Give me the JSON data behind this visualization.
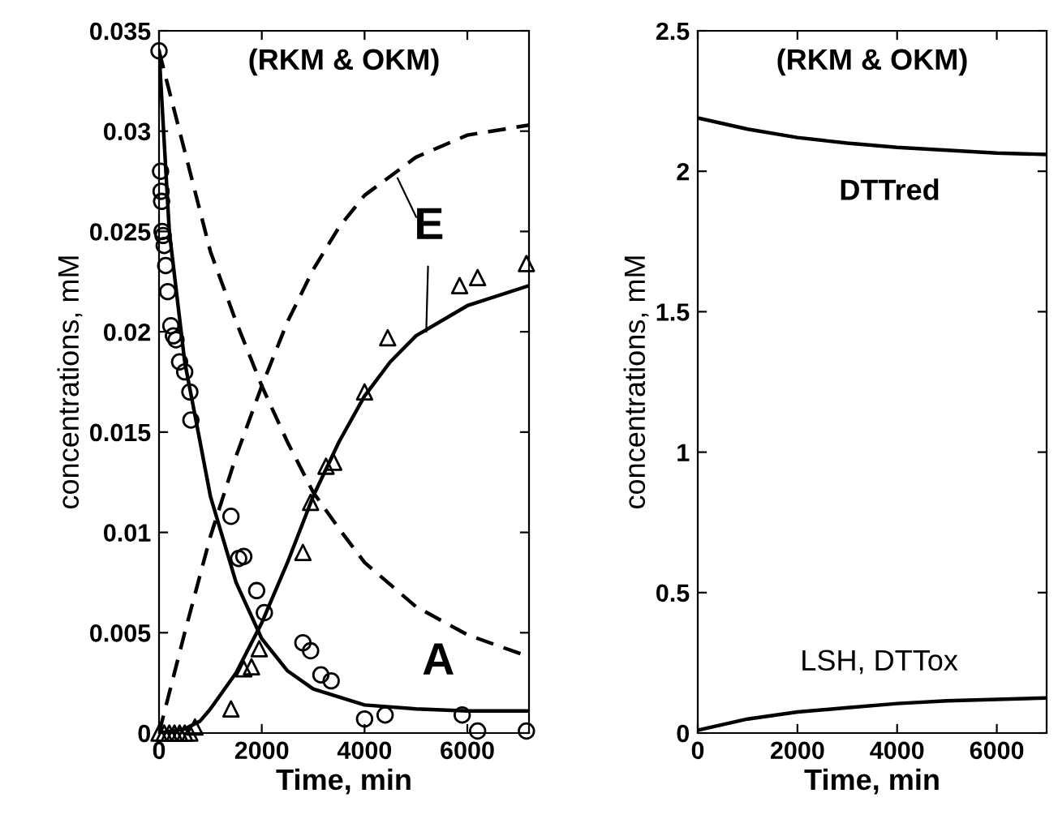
{
  "chart_data": [
    {
      "type": "line",
      "title": "(RKM & OKM)",
      "xlabel": "Time, min",
      "ylabel": "concentrations, mM",
      "xlim": [
        0,
        7200
      ],
      "xticks": [
        0,
        2000,
        4000,
        6000
      ],
      "ylim": [
        0,
        0.035
      ],
      "yticks": [
        0,
        0.005,
        0.01,
        0.015,
        0.02,
        0.025,
        0.03,
        0.035
      ],
      "grid": false,
      "legend": false,
      "series": [
        {
          "type": "scatter",
          "marker": "circle",
          "color": "#000000",
          "x": [
            0,
            30,
            40,
            50,
            60,
            80,
            100,
            130,
            170,
            230,
            280,
            330,
            400,
            500,
            600,
            620,
            1400,
            1550,
            1650,
            1900,
            2050,
            2800,
            2950,
            3150,
            3350,
            4000,
            4400,
            5900,
            6200,
            7150
          ],
          "values": [
            0.034,
            0.028,
            0.027,
            0.0265,
            0.025,
            0.0248,
            0.0243,
            0.0233,
            0.022,
            0.0203,
            0.0198,
            0.0196,
            0.0185,
            0.018,
            0.017,
            0.0156,
            0.0108,
            0.0087,
            0.0088,
            0.0071,
            0.006,
            0.0045,
            0.0041,
            0.0029,
            0.0026,
            0.0007,
            0.0009,
            0.0009,
            0.0001,
            0.0001
          ]
        },
        {
          "type": "scatter",
          "marker": "triangle",
          "color": "#000000",
          "x": [
            0,
            100,
            200,
            300,
            400,
            500,
            600,
            700,
            1400,
            1650,
            1800,
            1950,
            2800,
            2950,
            3250,
            3400,
            4000,
            4450,
            5850,
            6200,
            7150
          ],
          "values": [
            0,
            0,
            0,
            0,
            0,
            0,
            0,
            0.0003,
            0.0012,
            0.0032,
            0.0033,
            0.0042,
            0.009,
            0.0115,
            0.0133,
            0.0135,
            0.017,
            0.0197,
            0.0223,
            0.0227,
            0.0234
          ]
        },
        {
          "line_style": "solid",
          "color": "#000000",
          "x": [
            0,
            200,
            500,
            800,
            1000,
            1500,
            2000,
            2500,
            3000,
            4000,
            5000,
            6000,
            7200
          ],
          "values": [
            0.034,
            0.025,
            0.0185,
            0.0145,
            0.0118,
            0.0075,
            0.0047,
            0.0031,
            0.0022,
            0.0014,
            0.0012,
            0.0011,
            0.0011
          ]
        },
        {
          "line_style": "solid",
          "color": "#000000",
          "x": [
            0,
            500,
            800,
            1000,
            1500,
            2000,
            2500,
            3000,
            3500,
            4000,
            4500,
            5000,
            6000,
            7200
          ],
          "values": [
            0,
            0.0002,
            0.0006,
            0.0012,
            0.003,
            0.0055,
            0.0085,
            0.0118,
            0.0145,
            0.0168,
            0.0185,
            0.0198,
            0.0213,
            0.0223
          ]
        },
        {
          "line_style": "dashed",
          "color": "#000000",
          "x": [
            0,
            500,
            1000,
            1500,
            2000,
            2500,
            3000,
            3500,
            4000,
            5000,
            6000,
            7200
          ],
          "values": [
            0.034,
            0.029,
            0.024,
            0.0205,
            0.0173,
            0.0145,
            0.012,
            0.0102,
            0.0085,
            0.0063,
            0.0049,
            0.0038
          ]
        },
        {
          "line_style": "dashed",
          "color": "#000000",
          "x": [
            0,
            500,
            1000,
            1500,
            2000,
            2500,
            3000,
            3500,
            4000,
            5000,
            6000,
            7200
          ],
          "values": [
            0,
            0.005,
            0.0098,
            0.0138,
            0.0173,
            0.0205,
            0.0231,
            0.0252,
            0.0268,
            0.0287,
            0.0298,
            0.0303
          ]
        }
      ],
      "annotations": [
        {
          "text": "E",
          "x": 5200,
          "y": 0.02
        },
        "A"
      ]
    },
    {
      "type": "line",
      "title": "(RKM & OKM)",
      "xlabel": "Time, min",
      "ylabel": "concentrations, mM",
      "xlim": [
        0,
        7000
      ],
      "xticks": [
        0,
        2000,
        4000,
        6000
      ],
      "ylim": [
        0,
        2.5
      ],
      "yticks": [
        0,
        0.5,
        1,
        1.5,
        2,
        2.5
      ],
      "grid": false,
      "legend": false,
      "series": [
        {
          "line_style": "solid",
          "color": "#000000",
          "x": [
            0,
            1000,
            2000,
            3000,
            4000,
            5000,
            6000,
            7000
          ],
          "values": [
            2.19,
            2.15,
            2.12,
            2.1,
            2.085,
            2.075,
            2.065,
            2.06
          ]
        },
        {
          "line_style": "solid",
          "color": "#000000",
          "x": [
            0,
            1000,
            2000,
            3000,
            4000,
            5000,
            6000,
            7000
          ],
          "values": [
            0.01,
            0.05,
            0.075,
            0.09,
            0.105,
            0.115,
            0.12,
            0.125
          ]
        }
      ],
      "annotations": [
        "DTTred",
        "LSH, DTTox"
      ]
    }
  ]
}
